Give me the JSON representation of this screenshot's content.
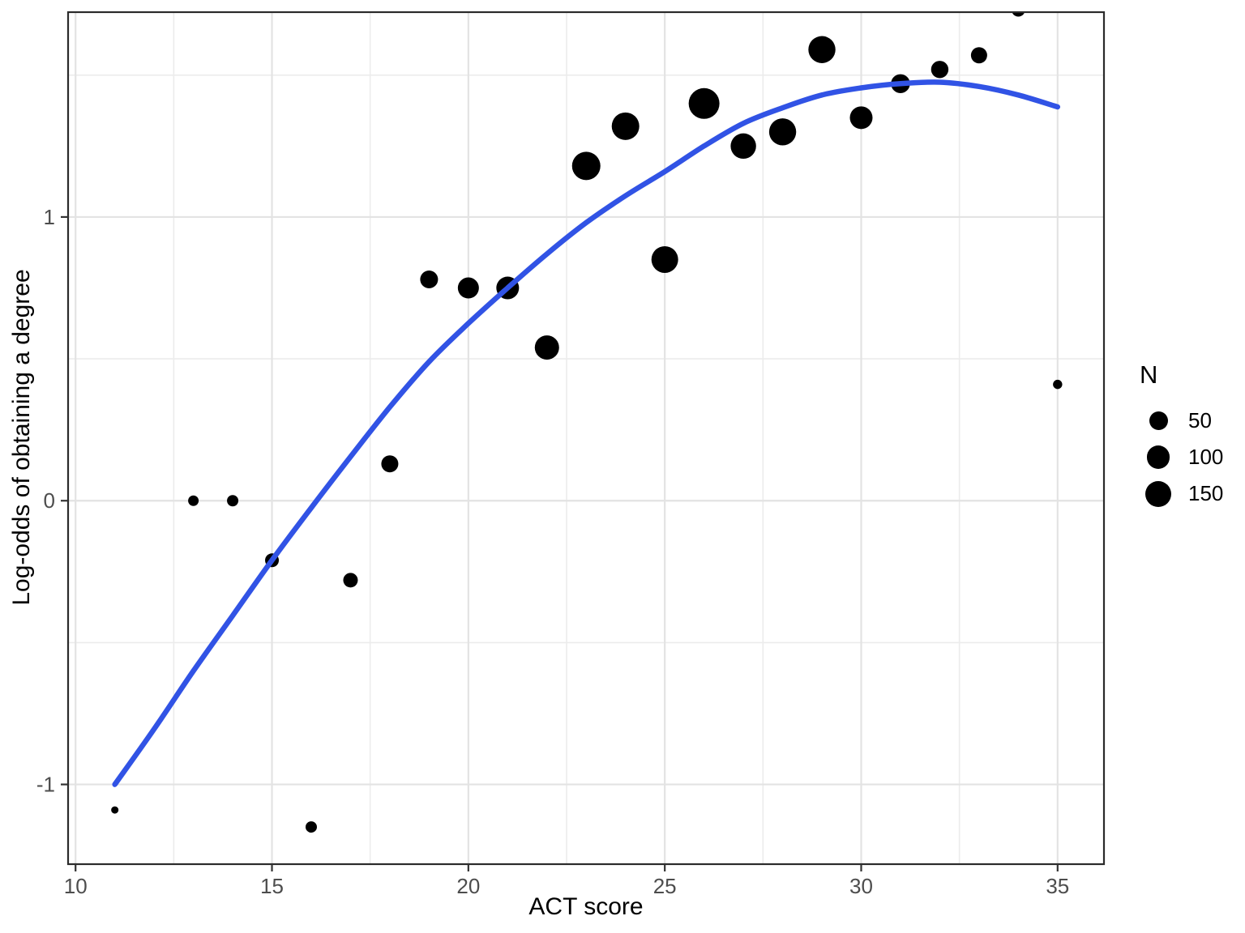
{
  "chart_data": {
    "type": "scatter",
    "title": "",
    "xlabel": "ACT score",
    "ylabel": "Log-odds of obtaining a degree",
    "x_ticks": [
      10,
      15,
      20,
      25,
      30,
      35
    ],
    "x_minor_gridlines": [
      12.5,
      17.5,
      22.5,
      27.5,
      32.5
    ],
    "y_ticks": [
      -1,
      0,
      1
    ],
    "y_minor_gridlines": [
      -0.5,
      0.5,
      1.5
    ],
    "xlim": [
      9.81,
      36.18
    ],
    "ylim": [
      -1.281,
      1.722
    ],
    "grid": "major-and-minor",
    "legend_position": "right",
    "point_color": "#000000",
    "points": [
      {
        "x": 11,
        "y": -1.09,
        "n": 2,
        "r": 4.5
      },
      {
        "x": 13,
        "y": 0.0,
        "n": 9,
        "r": 6.5
      },
      {
        "x": 14,
        "y": 0.0,
        "n": 12,
        "r": 7
      },
      {
        "x": 15,
        "y": -0.21,
        "n": 24,
        "r": 8.5
      },
      {
        "x": 16,
        "y": -1.15,
        "n": 11,
        "r": 7
      },
      {
        "x": 17,
        "y": -0.28,
        "n": 29,
        "r": 9
      },
      {
        "x": 18,
        "y": 0.13,
        "n": 47,
        "r": 10.5
      },
      {
        "x": 19,
        "y": 0.78,
        "n": 53,
        "r": 11
      },
      {
        "x": 20,
        "y": 0.75,
        "n": 84,
        "r": 13
      },
      {
        "x": 21,
        "y": 0.75,
        "n": 102,
        "r": 14
      },
      {
        "x": 22,
        "y": 0.54,
        "n": 122,
        "r": 15
      },
      {
        "x": 23,
        "y": 1.18,
        "n": 179,
        "r": 17.5
      },
      {
        "x": 24,
        "y": 1.32,
        "n": 167,
        "r": 17
      },
      {
        "x": 25,
        "y": 0.85,
        "n": 155,
        "r": 16.5
      },
      {
        "x": 26,
        "y": 1.4,
        "n": 219,
        "r": 19
      },
      {
        "x": 27,
        "y": 1.25,
        "n": 137,
        "r": 15.7
      },
      {
        "x": 28,
        "y": 1.3,
        "n": 160,
        "r": 16.7
      },
      {
        "x": 29,
        "y": 1.59,
        "n": 160,
        "r": 16.7
      },
      {
        "x": 30,
        "y": 1.35,
        "n": 102,
        "r": 14
      },
      {
        "x": 31,
        "y": 1.47,
        "n": 63,
        "r": 11.7
      },
      {
        "x": 32,
        "y": 1.52,
        "n": 49,
        "r": 10.7
      },
      {
        "x": 33,
        "y": 1.57,
        "n": 40,
        "r": 10
      },
      {
        "x": 34,
        "y": 1.73,
        "n": 23,
        "r": 8.3
      },
      {
        "x": 35,
        "y": 0.41,
        "n": 5,
        "r": 5.7
      }
    ],
    "smooth_line": {
      "color": "#3153E5",
      "stroke_width": 6.5,
      "points": [
        [
          11,
          -1.0
        ],
        [
          12,
          -0.805
        ],
        [
          13,
          -0.6
        ],
        [
          14,
          -0.405
        ],
        [
          15,
          -0.21
        ],
        [
          16,
          -0.025
        ],
        [
          17,
          0.155
        ],
        [
          18,
          0.33
        ],
        [
          19,
          0.49
        ],
        [
          20,
          0.625
        ],
        [
          21,
          0.75
        ],
        [
          22,
          0.87
        ],
        [
          23,
          0.98
        ],
        [
          24,
          1.075
        ],
        [
          25,
          1.16
        ],
        [
          26,
          1.25
        ],
        [
          27,
          1.33
        ],
        [
          28,
          1.385
        ],
        [
          29,
          1.43
        ],
        [
          30,
          1.455
        ],
        [
          31,
          1.47
        ],
        [
          32,
          1.475
        ],
        [
          33,
          1.46
        ],
        [
          34,
          1.43
        ],
        [
          35,
          1.388
        ]
      ]
    },
    "legend": {
      "title": "N",
      "entries": [
        {
          "label": "50",
          "radius_px": 11.5
        },
        {
          "label": "100",
          "radius_px": 14.3
        },
        {
          "label": "150",
          "radius_px": 16
        }
      ]
    },
    "styles": {
      "grid_major_color": "#E3E3E3",
      "grid_minor_color": "#ECECEC",
      "panel_border_color": "#2B2B2B",
      "tick_color": "#333333",
      "tick_label_color": "#4D4D4D",
      "axis_title_color": "#000000",
      "background": "#FFFFFF"
    }
  }
}
